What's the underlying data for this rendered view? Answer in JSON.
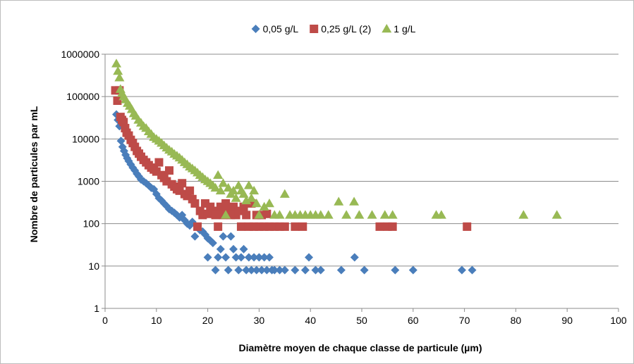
{
  "chart_data": {
    "type": "scatter",
    "xlabel": "Diamètre moyen de chaque classe de particule  (µm)",
    "ylabel": "Nombre de particules par mL",
    "xlim": [
      0,
      100
    ],
    "ylim": [
      1,
      1000000
    ],
    "yscale": "log",
    "x_ticks": [
      0,
      10,
      20,
      30,
      40,
      50,
      60,
      70,
      80,
      90,
      100
    ],
    "x_tick_labels": [
      "0",
      "10",
      "20",
      "30",
      "40",
      "50",
      "60",
      "70",
      "80",
      "90",
      "100"
    ],
    "y_ticks": [
      1,
      10,
      100,
      1000,
      10000,
      100000,
      1000000
    ],
    "y_tick_labels": [
      "1",
      "10",
      "100",
      "1000",
      "10000",
      "100000",
      "1000000"
    ],
    "grid": "horizontal",
    "legend_position": "top",
    "series": [
      {
        "name": "0,05 g/L",
        "marker": "diamond",
        "color": "#4a7ebb",
        "points": [
          [
            2.2,
            38000
          ],
          [
            2.5,
            28000
          ],
          [
            2.8,
            20000
          ],
          [
            3.1,
            9000
          ],
          [
            3.4,
            6500
          ],
          [
            3.7,
            5200
          ],
          [
            4.0,
            4200
          ],
          [
            4.3,
            3500
          ],
          [
            4.6,
            3000
          ],
          [
            5.0,
            2500
          ],
          [
            5.4,
            2100
          ],
          [
            5.8,
            1800
          ],
          [
            6.2,
            1500
          ],
          [
            6.6,
            1300
          ],
          [
            7.0,
            1100
          ],
          [
            7.5,
            1000
          ],
          [
            8.0,
            900
          ],
          [
            8.5,
            800
          ],
          [
            9.0,
            700
          ],
          [
            9.5,
            650
          ],
          [
            10.0,
            500
          ],
          [
            10.5,
            400
          ],
          [
            11.0,
            350
          ],
          [
            11.5,
            300
          ],
          [
            12.0,
            260
          ],
          [
            12.5,
            220
          ],
          [
            13.0,
            200
          ],
          [
            13.5,
            180
          ],
          [
            14.0,
            160
          ],
          [
            14.5,
            140
          ],
          [
            15.0,
            160
          ],
          [
            15.5,
            120
          ],
          [
            16.0,
            100
          ],
          [
            16.5,
            90
          ],
          [
            17.0,
            110
          ],
          [
            17.5,
            50
          ],
          [
            18.0,
            85
          ],
          [
            18.5,
            70
          ],
          [
            19.0,
            65
          ],
          [
            19.5,
            55
          ],
          [
            20.0,
            45
          ],
          [
            20.5,
            40
          ],
          [
            20.0,
            16
          ],
          [
            21.0,
            35
          ],
          [
            21.5,
            8
          ],
          [
            22.0,
            16
          ],
          [
            22.5,
            25
          ],
          [
            23.0,
            50
          ],
          [
            23.5,
            16
          ],
          [
            24.0,
            8
          ],
          [
            24.5,
            50
          ],
          [
            25.0,
            25
          ],
          [
            25.5,
            16
          ],
          [
            26.0,
            8
          ],
          [
            26.5,
            16
          ],
          [
            27.0,
            25
          ],
          [
            27.5,
            8
          ],
          [
            28.0,
            16
          ],
          [
            28.5,
            8
          ],
          [
            29.0,
            16
          ],
          [
            29.5,
            8
          ],
          [
            30.0,
            16
          ],
          [
            30.5,
            8
          ],
          [
            31.0,
            16
          ],
          [
            31.5,
            8
          ],
          [
            32.0,
            16
          ],
          [
            32.5,
            8
          ],
          [
            33.0,
            8
          ],
          [
            34.0,
            8
          ],
          [
            35.0,
            8
          ],
          [
            37.0,
            8
          ],
          [
            39.0,
            8
          ],
          [
            39.7,
            16
          ],
          [
            41.0,
            8
          ],
          [
            42.0,
            8
          ],
          [
            46.0,
            8
          ],
          [
            48.6,
            16
          ],
          [
            50.5,
            8
          ],
          [
            56.5,
            8
          ],
          [
            60.0,
            8
          ],
          [
            69.5,
            8
          ],
          [
            71.5,
            8
          ]
        ]
      },
      {
        "name": "0,25 g/L (2)",
        "marker": "square",
        "color": "#be4b48",
        "points": [
          [
            2.0,
            140000
          ],
          [
            2.4,
            80000
          ],
          [
            2.8,
            140000
          ],
          [
            3.0,
            33000
          ],
          [
            3.3,
            28000
          ],
          [
            3.6,
            25000
          ],
          [
            3.9,
            18000
          ],
          [
            4.2,
            14000
          ],
          [
            4.6,
            12000
          ],
          [
            5.0,
            9500
          ],
          [
            5.4,
            8000
          ],
          [
            5.8,
            6500
          ],
          [
            6.2,
            5200
          ],
          [
            6.6,
            4500
          ],
          [
            7.0,
            3800
          ],
          [
            7.5,
            3200
          ],
          [
            8.0,
            2800
          ],
          [
            8.5,
            2400
          ],
          [
            9.0,
            2100
          ],
          [
            9.5,
            1900
          ],
          [
            10.0,
            1700
          ],
          [
            10.5,
            2800
          ],
          [
            11.0,
            1400
          ],
          [
            11.5,
            1200
          ],
          [
            12.0,
            1000
          ],
          [
            12.5,
            1800
          ],
          [
            13.0,
            850
          ],
          [
            13.5,
            750
          ],
          [
            14.0,
            650
          ],
          [
            14.5,
            600
          ],
          [
            15.0,
            900
          ],
          [
            15.5,
            500
          ],
          [
            16.0,
            450
          ],
          [
            16.5,
            600
          ],
          [
            17.0,
            380
          ],
          [
            17.5,
            300
          ],
          [
            18.0,
            85
          ],
          [
            18.5,
            200
          ],
          [
            19.0,
            160
          ],
          [
            19.5,
            300
          ],
          [
            20.0,
            170
          ],
          [
            20.5,
            250
          ],
          [
            21.0,
            200
          ],
          [
            21.5,
            160
          ],
          [
            22.0,
            85
          ],
          [
            22.5,
            250
          ],
          [
            23.0,
            160
          ],
          [
            23.5,
            300
          ],
          [
            24.0,
            200
          ],
          [
            24.5,
            160
          ],
          [
            25.0,
            250
          ],
          [
            25.5,
            160
          ],
          [
            26.0,
            200
          ],
          [
            26.5,
            85
          ],
          [
            27.0,
            250
          ],
          [
            27.5,
            160
          ],
          [
            28.0,
            85
          ],
          [
            28.5,
            300
          ],
          [
            29.0,
            85
          ],
          [
            29.5,
            160
          ],
          [
            30.0,
            85
          ],
          [
            30.5,
            160
          ],
          [
            31.0,
            85
          ],
          [
            31.5,
            170
          ],
          [
            32.0,
            85
          ],
          [
            33.0,
            85
          ],
          [
            34.0,
            85
          ],
          [
            35.0,
            85
          ],
          [
            37.0,
            85
          ],
          [
            38.5,
            85
          ],
          [
            53.5,
            85
          ],
          [
            55.0,
            85
          ],
          [
            56.0,
            85
          ],
          [
            70.5,
            85
          ]
        ]
      },
      {
        "name": "1 g/L",
        "marker": "triangle",
        "color": "#98b954",
        "points": [
          [
            2.2,
            600000
          ],
          [
            2.5,
            400000
          ],
          [
            2.8,
            280000
          ],
          [
            3.0,
            150000
          ],
          [
            3.3,
            120000
          ],
          [
            3.6,
            100000
          ],
          [
            4.0,
            85000
          ],
          [
            4.4,
            70000
          ],
          [
            4.8,
            60000
          ],
          [
            5.2,
            50000
          ],
          [
            5.6,
            40000
          ],
          [
            6.0,
            35000
          ],
          [
            6.5,
            28000
          ],
          [
            7.0,
            24000
          ],
          [
            7.5,
            20000
          ],
          [
            8.0,
            18000
          ],
          [
            8.5,
            15000
          ],
          [
            9.0,
            13000
          ],
          [
            9.5,
            11000
          ],
          [
            10.0,
            10000
          ],
          [
            10.5,
            9000
          ],
          [
            11.0,
            8000
          ],
          [
            11.5,
            7000
          ],
          [
            12.0,
            6200
          ],
          [
            12.5,
            5500
          ],
          [
            13.0,
            5000
          ],
          [
            13.5,
            4400
          ],
          [
            14.0,
            4000
          ],
          [
            14.5,
            3600
          ],
          [
            15.0,
            3200
          ],
          [
            15.5,
            2800
          ],
          [
            16.0,
            2500
          ],
          [
            16.5,
            2200
          ],
          [
            17.0,
            2000
          ],
          [
            17.5,
            1800
          ],
          [
            18.0,
            1600
          ],
          [
            18.5,
            1400
          ],
          [
            19.0,
            1250
          ],
          [
            19.5,
            1100
          ],
          [
            20.0,
            1000
          ],
          [
            20.5,
            900
          ],
          [
            21.0,
            800
          ],
          [
            21.5,
            700
          ],
          [
            22.0,
            1400
          ],
          [
            22.5,
            600
          ],
          [
            23.0,
            900
          ],
          [
            23.5,
            160
          ],
          [
            24.0,
            700
          ],
          [
            24.5,
            500
          ],
          [
            25.0,
            600
          ],
          [
            25.5,
            400
          ],
          [
            26.0,
            800
          ],
          [
            26.5,
            600
          ],
          [
            27.0,
            500
          ],
          [
            27.5,
            350
          ],
          [
            28.0,
            800
          ],
          [
            28.5,
            400
          ],
          [
            29.0,
            600
          ],
          [
            29.5,
            300
          ],
          [
            30.0,
            160
          ],
          [
            31.0,
            250
          ],
          [
            32.0,
            300
          ],
          [
            33.0,
            160
          ],
          [
            34.0,
            160
          ],
          [
            35.0,
            500
          ],
          [
            36.0,
            160
          ],
          [
            37.0,
            160
          ],
          [
            38.0,
            160
          ],
          [
            39.0,
            160
          ],
          [
            40.0,
            160
          ],
          [
            41.0,
            160
          ],
          [
            42.0,
            160
          ],
          [
            43.5,
            160
          ],
          [
            45.5,
            330
          ],
          [
            47.0,
            160
          ],
          [
            48.5,
            330
          ],
          [
            49.5,
            160
          ],
          [
            52.0,
            160
          ],
          [
            54.5,
            160
          ],
          [
            56.0,
            160
          ],
          [
            64.5,
            160
          ],
          [
            65.5,
            160
          ],
          [
            81.5,
            160
          ],
          [
            88.0,
            160
          ]
        ]
      }
    ]
  }
}
